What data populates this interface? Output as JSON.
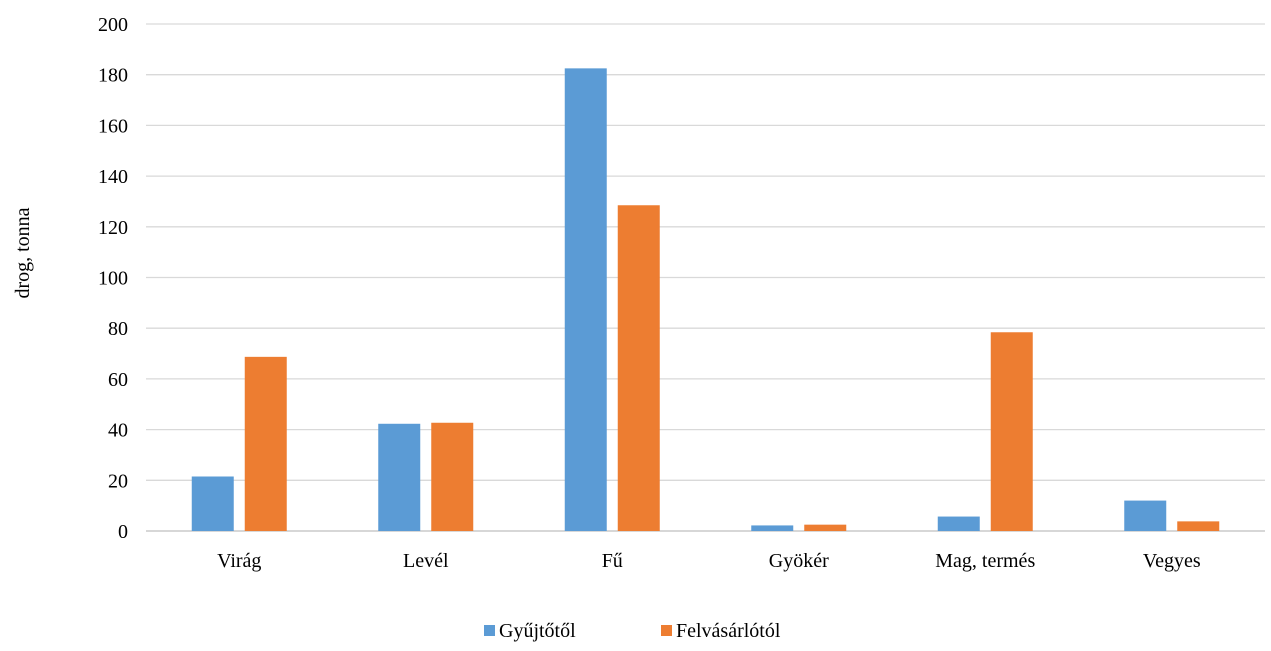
{
  "chart_data": {
    "type": "bar",
    "title": "",
    "xlabel": "",
    "ylabel": "drog, tonna",
    "ylim": [
      0,
      200
    ],
    "yticks": [
      0,
      20,
      40,
      60,
      80,
      100,
      120,
      140,
      160,
      180,
      200
    ],
    "grid": true,
    "legend_position": "bottom",
    "categories": [
      "Virág",
      "Levél",
      "Fű",
      "Gyökér",
      "Mag, termés",
      "Vegyes"
    ],
    "series": [
      {
        "name": "Gyűjtőtől",
        "color": "#5b9bd5",
        "values": [
          21.5,
          42.3,
          182.5,
          2.2,
          5.7,
          12.0
        ]
      },
      {
        "name": "Felvásárlótól",
        "color": "#ed7d31",
        "values": [
          68.7,
          42.7,
          128.5,
          2.5,
          78.4,
          3.8
        ]
      }
    ]
  }
}
